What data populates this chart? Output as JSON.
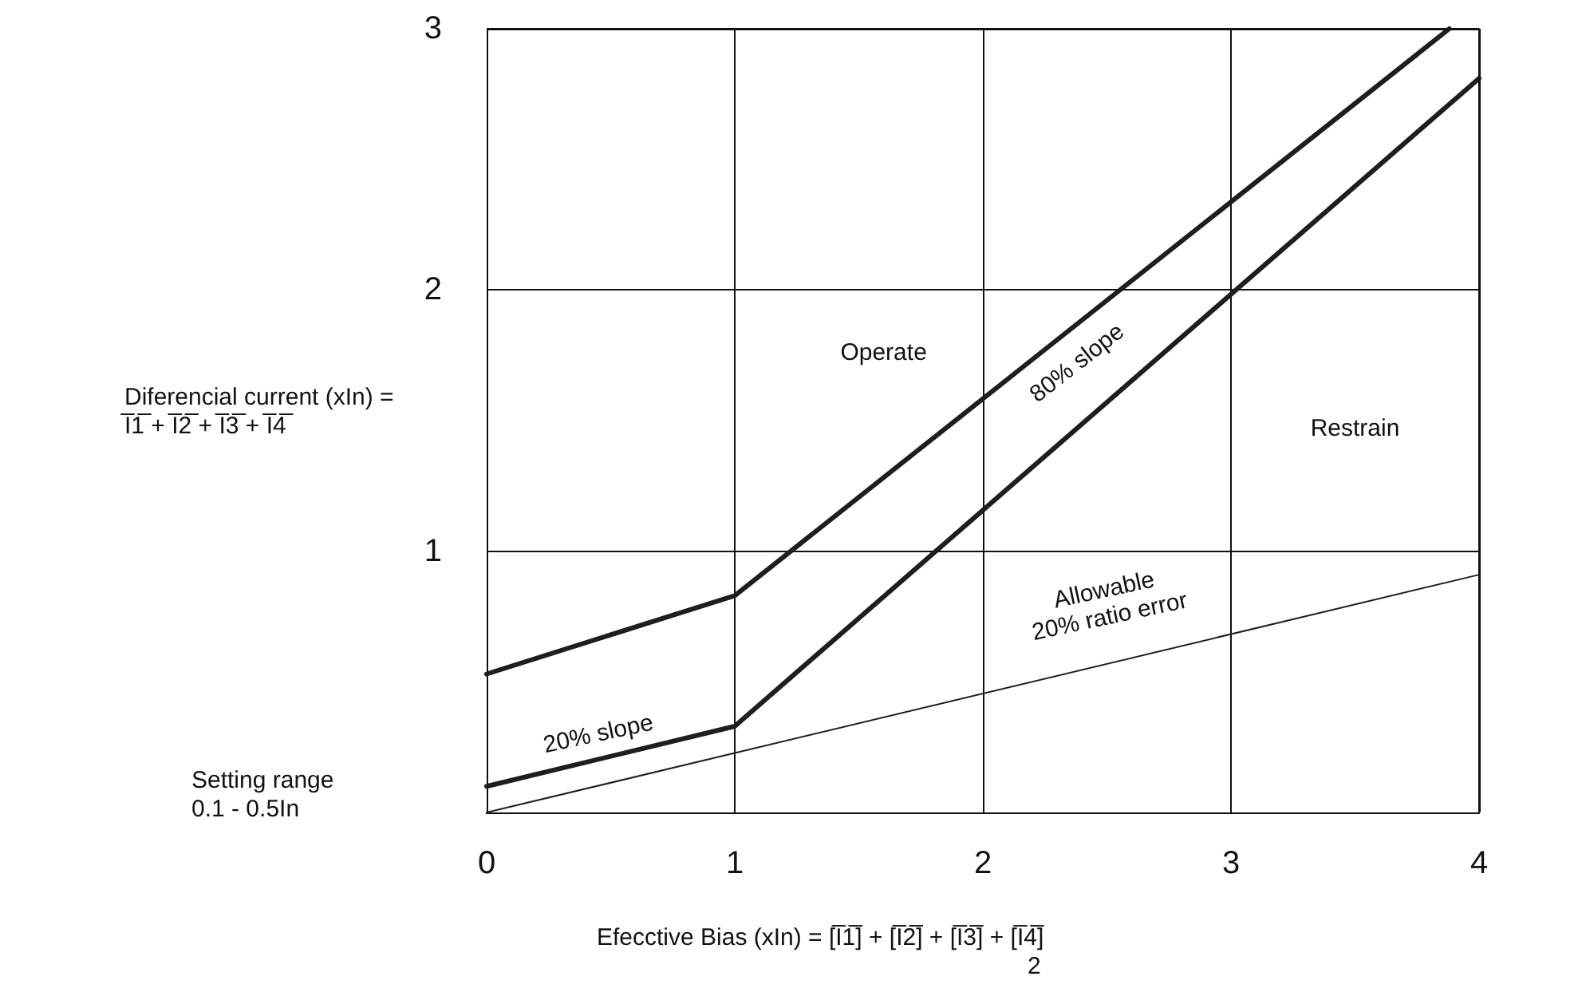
{
  "chart_data": {
    "type": "line",
    "xlabel": "Efecctive Bias (xIn) = [I̅1̅] + [I̅2̅] + [I̅3̅] + [I̅4̅]\n2",
    "ylabel": "Diferencial current (xIn) =\nI̅1̅ + I̅2̅ + I̅3̅ + I̅4̅",
    "xlim": [
      0,
      4
    ],
    "ylim": [
      0,
      3
    ],
    "xticks": [
      0,
      1,
      2,
      3,
      4
    ],
    "yticks": [
      1,
      2,
      3
    ],
    "grid": true,
    "marker": "none",
    "line_style": "solid",
    "series": [
      {
        "color": "#1e1e1e",
        "x": [
          0,
          1,
          3.88
        ],
        "values": [
          0.53,
          0.83,
          3.0
        ]
      },
      {
        "color": "#1e1e1e",
        "x": [
          0,
          1,
          4
        ],
        "values": [
          0.1,
          0.33,
          2.81
        ]
      },
      {
        "color": "#1e1e1e",
        "x": [
          0,
          4
        ],
        "values": [
          0,
          0.91
        ]
      }
    ],
    "annotations": [
      "Operate",
      "Restrain",
      "80% slope",
      "20% slope",
      "Allowable\n20% ratio error",
      "Setting range\n0.1 - 0.5In"
    ]
  }
}
